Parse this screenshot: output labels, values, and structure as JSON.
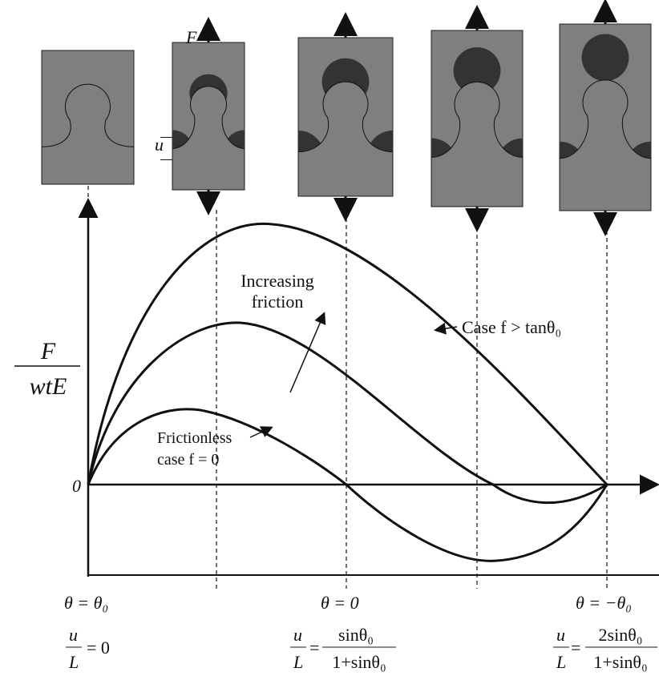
{
  "labels": {
    "force": "F",
    "displacement": "u",
    "y_axis_numerator": "F",
    "y_axis_denominator": "wtE",
    "origin": "0",
    "increasing_friction": [
      "Increasing",
      "friction"
    ],
    "case_high_friction": "Case f > tanθ₀",
    "frictionless": [
      "Frictionless",
      "case f = 0"
    ]
  },
  "x_labels": [
    {
      "theta": "θ = θ₀",
      "u_lhs_num": "u",
      "u_lhs_den": "L",
      "u_rhs": "= 0"
    },
    {
      "theta": "θ = 0",
      "u_lhs_num": "u",
      "u_lhs_den": "L",
      "u_rhs_num": "sinθ₀",
      "u_rhs_den": "1+sinθ₀"
    },
    {
      "theta": "θ = −θ₀",
      "u_lhs_num": "u",
      "u_lhs_den": "L",
      "u_rhs_num": "2sinθ₀",
      "u_rhs_den": "1+sinθ₀"
    }
  ]
}
